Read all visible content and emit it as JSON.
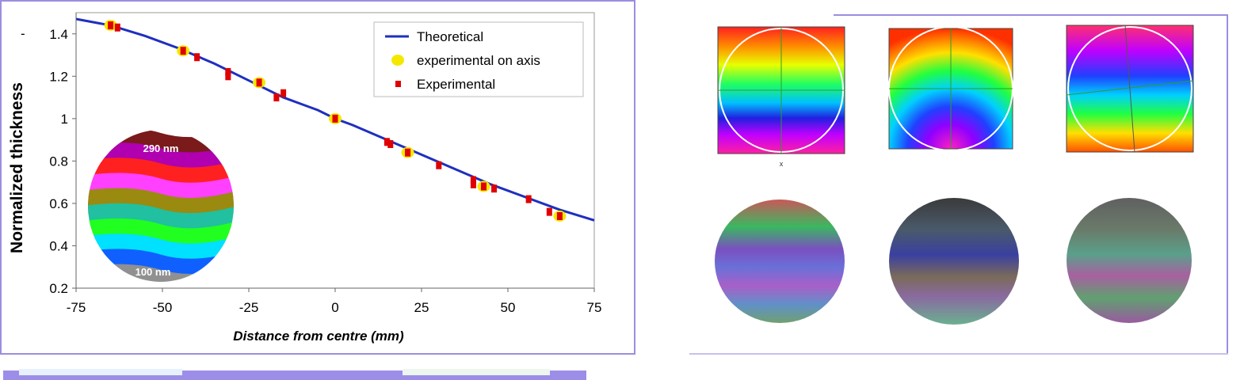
{
  "chart_data": {
    "type": "line",
    "xlabel": "Distance from centre (mm)",
    "ylabel": "Normalized thickness",
    "xlim": [
      -75,
      75
    ],
    "ylim": [
      0.2,
      1.5
    ],
    "xticks": [
      -75,
      -50,
      -25,
      0,
      25,
      50,
      75
    ],
    "yticks": [
      0.2,
      0.4,
      0.6,
      0.8,
      1,
      1.2,
      1.4
    ],
    "legend_position": "top-right",
    "series": [
      {
        "name": "Theoretical",
        "kind": "line",
        "color": "#1f2fbf",
        "x": [
          -75,
          -65,
          -55,
          -45,
          -35,
          -25,
          -15,
          -5,
          0,
          5,
          15,
          25,
          35,
          45,
          55,
          65,
          75
        ],
        "y": [
          1.47,
          1.44,
          1.39,
          1.33,
          1.26,
          1.18,
          1.1,
          1.04,
          1.0,
          0.97,
          0.9,
          0.83,
          0.76,
          0.69,
          0.63,
          0.57,
          0.52
        ]
      },
      {
        "name": "experimental on axis",
        "kind": "marker-circle",
        "color": "#f5e800",
        "x": [
          -65,
          -44,
          -22,
          0,
          21,
          43,
          65
        ],
        "y": [
          1.44,
          1.32,
          1.17,
          1.0,
          0.84,
          0.68,
          0.54
        ]
      },
      {
        "name": "Experimental",
        "kind": "marker-square",
        "color": "#e00000",
        "x": [
          -65,
          -63,
          -44,
          -40,
          -31,
          -31,
          -22,
          -17,
          -15,
          0,
          15,
          16,
          21,
          30,
          40,
          40,
          43,
          46,
          56,
          62,
          65
        ],
        "y": [
          1.44,
          1.43,
          1.32,
          1.29,
          1.22,
          1.2,
          1.17,
          1.1,
          1.12,
          1.0,
          0.89,
          0.88,
          0.84,
          0.78,
          0.71,
          0.69,
          0.68,
          0.67,
          0.62,
          0.56,
          0.54
        ]
      }
    ],
    "inset": {
      "top_label": "290 nm",
      "bottom_label": "100 nm",
      "bands": [
        "#7a1a1a",
        "#b000b0",
        "#ff2020",
        "#ff40ff",
        "#9a8a10",
        "#20c0a0",
        "#20ff20",
        "#00e0ff",
        "#1060ff",
        "#909090"
      ]
    }
  },
  "small_tick_mark": "-",
  "colors": {
    "frame": "#9b8ee0",
    "bar": "#9c8ee8"
  }
}
